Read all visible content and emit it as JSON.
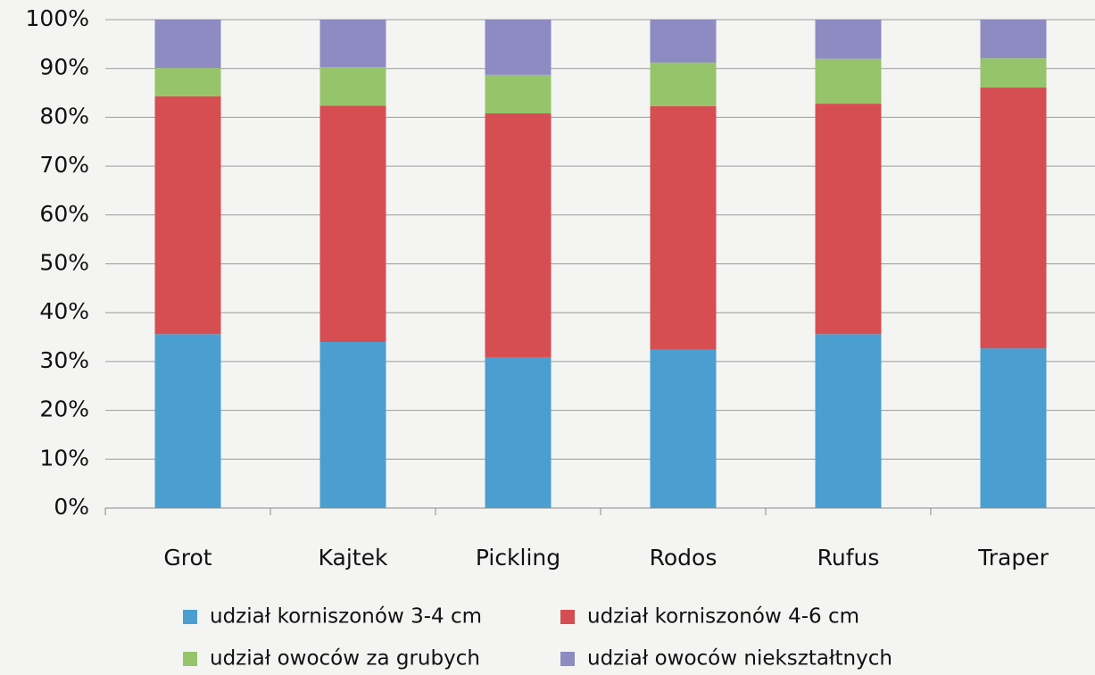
{
  "chart_data": {
    "type": "stacked_bar",
    "categories": [
      "Grot",
      "Kajtek",
      "Pickling",
      "Rodos",
      "Rufus",
      "Traper"
    ],
    "series": [
      {
        "name": "udział korniszonów 3-4 cm",
        "color": "#4a9fd0",
        "values": [
          35.6,
          34.0,
          30.9,
          32.4,
          35.6,
          32.7
        ]
      },
      {
        "name": "udział korniszonów 4-6 cm",
        "color": "#d64e52",
        "values": [
          48.7,
          48.4,
          49.9,
          49.9,
          47.2,
          53.4
        ]
      },
      {
        "name": "udział owoców za grubych",
        "color": "#96c46a",
        "values": [
          5.8,
          7.9,
          7.9,
          8.9,
          9.2,
          6.0
        ]
      },
      {
        "name": "udział owoców niekształtnych",
        "color": "#8e8ac2",
        "values": [
          9.9,
          9.7,
          11.3,
          8.8,
          8.0,
          7.9
        ]
      }
    ],
    "ylim": [
      0,
      100
    ],
    "yticks": [
      {
        "value": 0,
        "label": "0%"
      },
      {
        "value": 10,
        "label": "10%"
      },
      {
        "value": 20,
        "label": "20%"
      },
      {
        "value": 30,
        "label": "30%"
      },
      {
        "value": 40,
        "label": "40%"
      },
      {
        "value": 50,
        "label": "50%"
      },
      {
        "value": 60,
        "label": "60%"
      },
      {
        "value": 70,
        "label": "70%"
      },
      {
        "value": 80,
        "label": "80%"
      },
      {
        "value": 90,
        "label": "90%"
      },
      {
        "value": 100,
        "label": "100%"
      }
    ],
    "grid": true
  }
}
